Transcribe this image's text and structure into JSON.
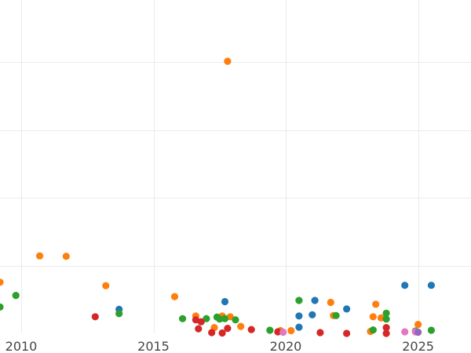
{
  "chart_data": {
    "type": "scatter",
    "title": "",
    "xlabel": "",
    "ylabel": "",
    "xlim": [
      2009.2,
      2027.0
    ],
    "ylim": [
      0,
      8.6
    ],
    "x_ticks": [
      2010,
      2015,
      2020,
      2025
    ],
    "y_gridlines": [
      1.75,
      3.5,
      5.25,
      7.0
    ],
    "grid": true,
    "legend": "none",
    "groups": [
      {
        "color": "#1f77b4",
        "points": [
          [
            2013.7,
            0.62
          ],
          [
            2017.7,
            0.82
          ],
          [
            2020.5,
            0.45
          ],
          [
            2020.5,
            0.16
          ],
          [
            2021.0,
            0.48
          ],
          [
            2021.1,
            0.85
          ],
          [
            2022.3,
            0.63
          ],
          [
            2024.5,
            1.24
          ],
          [
            2025.5,
            1.24
          ]
        ]
      },
      {
        "color": "#ff7f0e",
        "points": [
          [
            2009.2,
            1.32
          ],
          [
            2010.7,
            2.0
          ],
          [
            2011.7,
            1.99
          ],
          [
            2013.2,
            1.23
          ],
          [
            2015.8,
            0.95
          ],
          [
            2016.6,
            0.45
          ],
          [
            2017.3,
            0.15
          ],
          [
            2017.6,
            0.45
          ],
          [
            2017.9,
            0.43
          ],
          [
            2017.8,
            7.02
          ],
          [
            2018.3,
            0.18
          ],
          [
            2019.8,
            0.07
          ],
          [
            2020.2,
            0.07
          ],
          [
            2021.7,
            0.8
          ],
          [
            2021.8,
            0.46
          ],
          [
            2023.2,
            0.05
          ],
          [
            2023.3,
            0.43
          ],
          [
            2023.4,
            0.75
          ],
          [
            2023.6,
            0.4
          ],
          [
            2025.0,
            0.23
          ]
        ]
      },
      {
        "color": "#2ca02c",
        "points": [
          [
            2009.2,
            0.68
          ],
          [
            2009.8,
            0.98
          ],
          [
            2013.7,
            0.51
          ],
          [
            2016.1,
            0.38
          ],
          [
            2017.0,
            0.38
          ],
          [
            2017.4,
            0.42
          ],
          [
            2017.5,
            0.37
          ],
          [
            2017.7,
            0.38
          ],
          [
            2018.1,
            0.35
          ],
          [
            2019.4,
            0.08
          ],
          [
            2020.5,
            0.85
          ],
          [
            2021.9,
            0.46
          ],
          [
            2023.3,
            0.09
          ],
          [
            2023.8,
            0.37
          ],
          [
            2023.8,
            0.52
          ],
          [
            2024.9,
            0.06
          ],
          [
            2025.5,
            0.08
          ]
        ]
      },
      {
        "color": "#d62728",
        "points": [
          [
            2012.8,
            0.43
          ],
          [
            2016.6,
            0.35
          ],
          [
            2016.7,
            0.12
          ],
          [
            2016.8,
            0.3
          ],
          [
            2017.2,
            0.02
          ],
          [
            2017.6,
            0.01
          ],
          [
            2017.8,
            0.13
          ],
          [
            2018.7,
            0.1
          ],
          [
            2019.7,
            0.04
          ],
          [
            2021.3,
            0.02
          ],
          [
            2022.3,
            0.0
          ],
          [
            2023.8,
            0.15
          ],
          [
            2023.8,
            0.0
          ]
        ]
      },
      {
        "color": "#e377c2",
        "points": [
          [
            2019.9,
            0.03
          ],
          [
            2024.5,
            0.04
          ],
          [
            2024.9,
            0.04
          ]
        ]
      },
      {
        "color": "#9467bd",
        "points": [
          [
            2025.0,
            0.03
          ]
        ]
      }
    ]
  }
}
